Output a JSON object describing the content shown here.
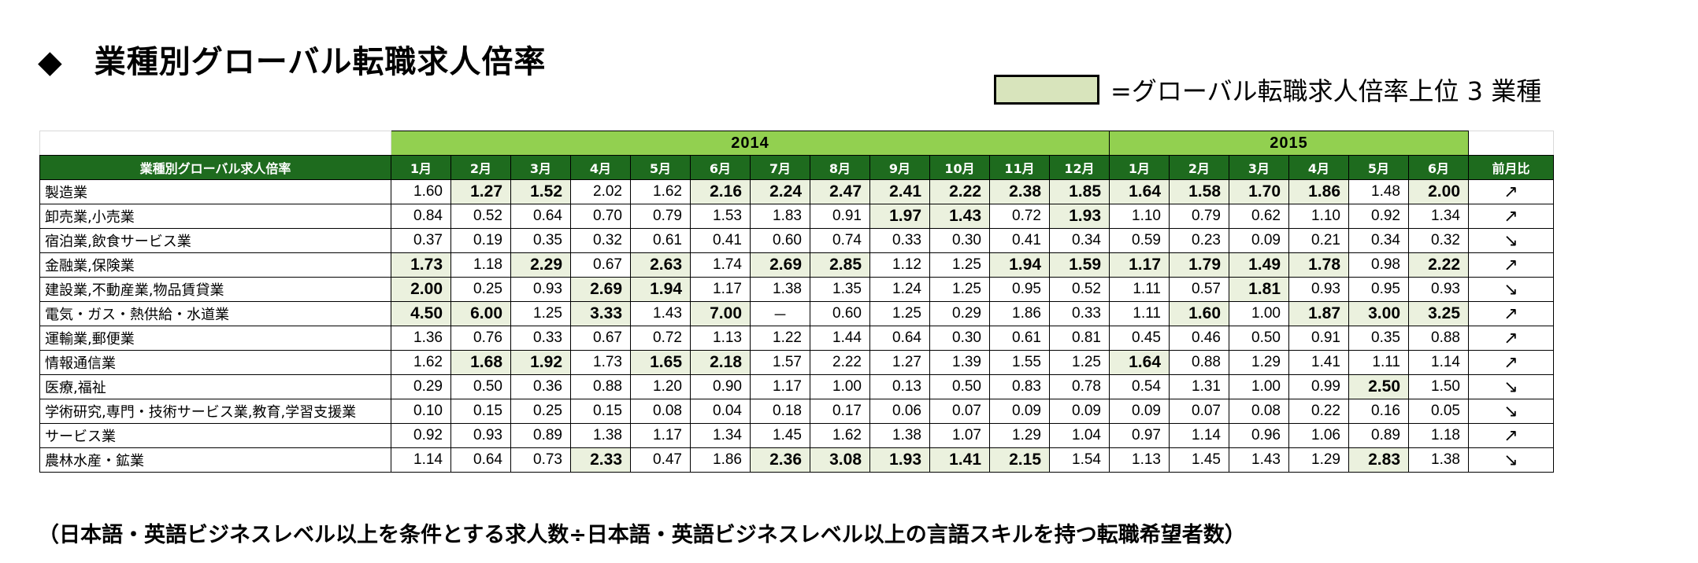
{
  "title": {
    "marker": "◆",
    "text": "業種別グローバル転職求人倍率"
  },
  "legend": {
    "text": "=グローバル転職求人倍率上位 3 業種",
    "highlight_color": "#d8e4bc"
  },
  "years": [
    {
      "label": "2014",
      "span": 12
    },
    {
      "label": "2015",
      "span": 6
    }
  ],
  "header": {
    "row_label": "業種別グローバル求人倍率",
    "months": [
      "1月",
      "2月",
      "3月",
      "4月",
      "5月",
      "6月",
      "7月",
      "8月",
      "9月",
      "10月",
      "11月",
      "12月",
      "1月",
      "2月",
      "3月",
      "4月",
      "5月",
      "6月"
    ],
    "change_label": "前月比"
  },
  "colors": {
    "header_green": "#1e6b1e",
    "year_green": "#92d050",
    "highlight_cell": "#ebf1de"
  },
  "rows": [
    {
      "label": "製造業",
      "values": [
        "1.60",
        "1.27",
        "1.52",
        "2.02",
        "1.62",
        "2.16",
        "2.24",
        "2.47",
        "2.41",
        "2.22",
        "2.38",
        "1.85",
        "1.64",
        "1.58",
        "1.70",
        "1.86",
        "1.48",
        "2.00"
      ],
      "highlight": [
        false,
        true,
        true,
        false,
        false,
        true,
        true,
        true,
        true,
        true,
        true,
        true,
        true,
        true,
        true,
        true,
        false,
        true
      ],
      "change": "↗"
    },
    {
      "label": "卸売業,小売業",
      "values": [
        "0.84",
        "0.52",
        "0.64",
        "0.70",
        "0.79",
        "1.53",
        "1.83",
        "0.91",
        "1.97",
        "1.43",
        "0.72",
        "1.93",
        "1.10",
        "0.79",
        "0.62",
        "1.10",
        "0.92",
        "1.34"
      ],
      "highlight": [
        false,
        false,
        false,
        false,
        false,
        false,
        false,
        false,
        true,
        true,
        false,
        true,
        false,
        false,
        false,
        false,
        false,
        false
      ],
      "change": "↗"
    },
    {
      "label": "宿泊業,飲食サービス業",
      "values": [
        "0.37",
        "0.19",
        "0.35",
        "0.32",
        "0.61",
        "0.41",
        "0.60",
        "0.74",
        "0.33",
        "0.30",
        "0.41",
        "0.34",
        "0.59",
        "0.23",
        "0.09",
        "0.21",
        "0.34",
        "0.32"
      ],
      "highlight": [
        false,
        false,
        false,
        false,
        false,
        false,
        false,
        false,
        false,
        false,
        false,
        false,
        false,
        false,
        false,
        false,
        false,
        false
      ],
      "change": "↘"
    },
    {
      "label": "金融業,保険業",
      "values": [
        "1.73",
        "1.18",
        "2.29",
        "0.67",
        "2.63",
        "1.74",
        "2.69",
        "2.85",
        "1.12",
        "1.25",
        "1.94",
        "1.59",
        "1.17",
        "1.79",
        "1.49",
        "1.78",
        "0.98",
        "2.22"
      ],
      "highlight": [
        true,
        false,
        true,
        false,
        true,
        false,
        true,
        true,
        false,
        false,
        true,
        true,
        true,
        true,
        true,
        true,
        false,
        true
      ],
      "change": "↗"
    },
    {
      "label": "建設業,不動産業,物品賃貸業",
      "values": [
        "2.00",
        "0.25",
        "0.93",
        "2.69",
        "1.94",
        "1.17",
        "1.38",
        "1.35",
        "1.24",
        "1.25",
        "0.95",
        "0.52",
        "1.11",
        "0.57",
        "1.81",
        "0.93",
        "0.95",
        "0.93"
      ],
      "highlight": [
        true,
        false,
        false,
        true,
        true,
        false,
        false,
        false,
        false,
        false,
        false,
        false,
        false,
        false,
        true,
        false,
        false,
        false
      ],
      "change": "↘"
    },
    {
      "label": "電気・ガス・熱供給・水道業",
      "values": [
        "4.50",
        "6.00",
        "1.25",
        "3.33",
        "1.43",
        "7.00",
        "－",
        "0.60",
        "1.25",
        "0.29",
        "1.86",
        "0.33",
        "1.11",
        "1.60",
        "1.00",
        "1.87",
        "3.00",
        "3.25"
      ],
      "highlight": [
        true,
        true,
        false,
        true,
        false,
        true,
        false,
        false,
        false,
        false,
        false,
        false,
        false,
        true,
        false,
        true,
        true,
        true
      ],
      "change": "↗"
    },
    {
      "label": "運輸業,郵便業",
      "values": [
        "1.36",
        "0.76",
        "0.33",
        "0.67",
        "0.72",
        "1.13",
        "1.22",
        "1.44",
        "0.64",
        "0.30",
        "0.61",
        "0.81",
        "0.45",
        "0.46",
        "0.50",
        "0.91",
        "0.35",
        "0.88"
      ],
      "highlight": [
        false,
        false,
        false,
        false,
        false,
        false,
        false,
        false,
        false,
        false,
        false,
        false,
        false,
        false,
        false,
        false,
        false,
        false
      ],
      "change": "↗"
    },
    {
      "label": "情報通信業",
      "values": [
        "1.62",
        "1.68",
        "1.92",
        "1.73",
        "1.65",
        "2.18",
        "1.57",
        "2.22",
        "1.27",
        "1.39",
        "1.55",
        "1.25",
        "1.64",
        "0.88",
        "1.29",
        "1.41",
        "1.11",
        "1.14"
      ],
      "highlight": [
        false,
        true,
        true,
        false,
        true,
        true,
        false,
        false,
        false,
        false,
        false,
        false,
        true,
        false,
        false,
        false,
        false,
        false
      ],
      "change": "↗"
    },
    {
      "label": "医療,福祉",
      "values": [
        "0.29",
        "0.50",
        "0.36",
        "0.88",
        "1.20",
        "0.90",
        "1.17",
        "1.00",
        "0.13",
        "0.50",
        "0.83",
        "0.78",
        "0.54",
        "1.31",
        "1.00",
        "0.99",
        "2.50",
        "1.50"
      ],
      "highlight": [
        false,
        false,
        false,
        false,
        false,
        false,
        false,
        false,
        false,
        false,
        false,
        false,
        false,
        false,
        false,
        false,
        true,
        false
      ],
      "change": "↘"
    },
    {
      "label": "学術研究,専門・技術サービス業,教育,学習支援業",
      "values": [
        "0.10",
        "0.15",
        "0.25",
        "0.15",
        "0.08",
        "0.04",
        "0.18",
        "0.17",
        "0.06",
        "0.07",
        "0.09",
        "0.09",
        "0.09",
        "0.07",
        "0.08",
        "0.22",
        "0.16",
        "0.05"
      ],
      "highlight": [
        false,
        false,
        false,
        false,
        false,
        false,
        false,
        false,
        false,
        false,
        false,
        false,
        false,
        false,
        false,
        false,
        false,
        false
      ],
      "change": "↘"
    },
    {
      "label": "サービス業",
      "values": [
        "0.92",
        "0.93",
        "0.89",
        "1.38",
        "1.17",
        "1.34",
        "1.45",
        "1.62",
        "1.38",
        "1.07",
        "1.29",
        "1.04",
        "0.97",
        "1.14",
        "0.96",
        "1.06",
        "0.89",
        "1.18"
      ],
      "highlight": [
        false,
        false,
        false,
        false,
        false,
        false,
        false,
        false,
        false,
        false,
        false,
        false,
        false,
        false,
        false,
        false,
        false,
        false
      ],
      "change": "↗"
    },
    {
      "label": "農林水産・鉱業",
      "values": [
        "1.14",
        "0.64",
        "0.73",
        "2.33",
        "0.47",
        "1.86",
        "2.36",
        "3.08",
        "1.93",
        "1.41",
        "2.15",
        "1.54",
        "1.13",
        "1.45",
        "1.43",
        "1.29",
        "2.83",
        "1.38"
      ],
      "highlight": [
        false,
        false,
        false,
        true,
        false,
        false,
        true,
        true,
        true,
        true,
        true,
        false,
        false,
        false,
        false,
        false,
        true,
        false
      ],
      "change": "↘"
    }
  ],
  "footnote": "（日本語・英語ビジネスレベル以上を条件とする求人数÷日本語・英語ビジネスレベル以上の言語スキルを持つ転職希望者数）"
}
